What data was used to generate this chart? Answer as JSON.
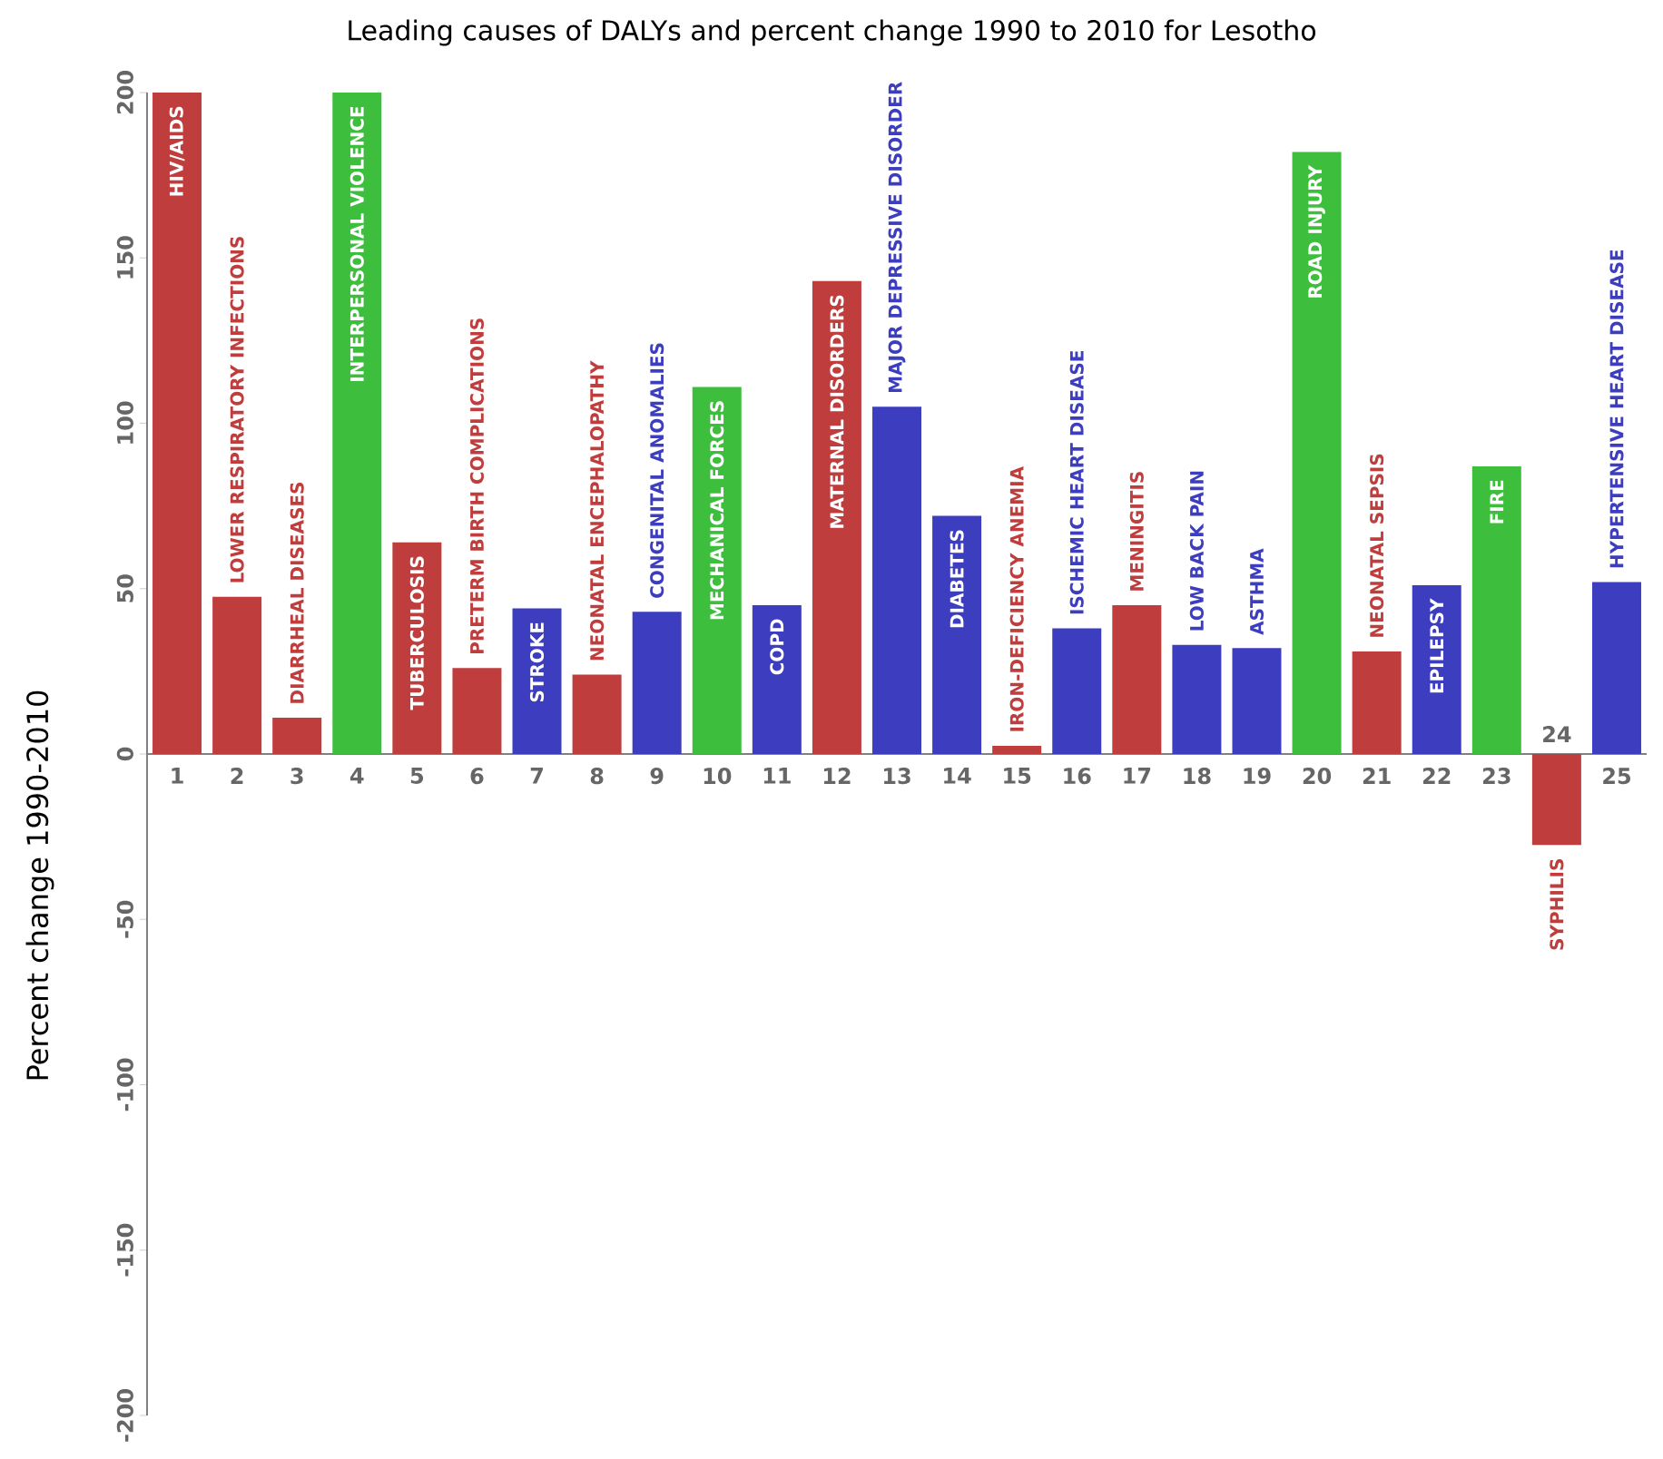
{
  "chart_data": {
    "type": "bar",
    "title": "Leading causes of DALYs and percent change 1990 to 2010 for Lesotho",
    "ylabel": "Percent change 1990-2010",
    "categories": [
      "1",
      "2",
      "3",
      "4",
      "5",
      "6",
      "7",
      "8",
      "9",
      "10",
      "11",
      "12",
      "13",
      "14",
      "15",
      "16",
      "17",
      "18",
      "19",
      "20",
      "21",
      "22",
      "23",
      "24",
      "25"
    ],
    "values": [
      200,
      47.5,
      11,
      200,
      64,
      26,
      44,
      24,
      43,
      111,
      45,
      143,
      105,
      72,
      2.5,
      38,
      45,
      33,
      32,
      182,
      31,
      51,
      87,
      -27.5,
      52
    ],
    "colors": [
      "#bf3d3d",
      "#bf3d3d",
      "#bf3d3d",
      "#3dbf3d",
      "#bf3d3d",
      "#bf3d3d",
      "#3d3dbf",
      "#bf3d3d",
      "#3d3dbf",
      "#3dbf3d",
      "#3d3dbf",
      "#bf3d3d",
      "#3d3dbf",
      "#3d3dbf",
      "#bf3d3d",
      "#3d3dbf",
      "#bf3d3d",
      "#3d3dbf",
      "#3d3dbf",
      "#3dbf3d",
      "#bf3d3d",
      "#3d3dbf",
      "#3dbf3d",
      "#bf3d3d",
      "#3d3dbf"
    ],
    "ylim": [
      -200,
      200
    ],
    "yticks": [
      -200,
      -150,
      -100,
      -50,
      0,
      50,
      100,
      150,
      200
    ],
    "annotations": [
      {
        "text": "HIV/AIDS",
        "x": "1",
        "y": 200
      },
      {
        "text": "LOWER RESPIRATORY INFECTIONS",
        "x": "2",
        "y": 47.5
      },
      {
        "text": "DIARRHEAL DISEASES",
        "x": "3",
        "y": 11
      },
      {
        "text": "INTERPERSONAL VIOLENCE",
        "x": "4",
        "y": 200
      },
      {
        "text": "TUBERCULOSIS",
        "x": "5",
        "y": 64
      },
      {
        "text": "PRETERM BIRTH COMPLICATIONS",
        "x": "6",
        "y": 26
      },
      {
        "text": "STROKE",
        "x": "7",
        "y": 44
      },
      {
        "text": "NEONATAL ENCEPHALOPATHY",
        "x": "8",
        "y": 24
      },
      {
        "text": "CONGENITAL ANOMALIES",
        "x": "9",
        "y": 43
      },
      {
        "text": "MECHANICAL FORCES",
        "x": "10",
        "y": 111
      },
      {
        "text": "COPD",
        "x": "11",
        "y": 45
      },
      {
        "text": "MATERNAL DISORDERS",
        "x": "12",
        "y": 143
      },
      {
        "text": "MAJOR DEPRESSIVE DISORDER",
        "x": "13",
        "y": 105
      },
      {
        "text": "DIABETES",
        "x": "14",
        "y": 72
      },
      {
        "text": "IRON-DEFICIENCY ANEMIA",
        "x": "15",
        "y": 2.5
      },
      {
        "text": "ISCHEMIC HEART DISEASE",
        "x": "16",
        "y": 38
      },
      {
        "text": "MENINGITIS",
        "x": "17",
        "y": 45
      },
      {
        "text": "LOW BACK PAIN",
        "x": "18",
        "y": 33
      },
      {
        "text": "ASTHMA",
        "x": "19",
        "y": 32
      },
      {
        "text": "ROAD INJURY",
        "x": "20",
        "y": 182
      },
      {
        "text": "NEONATAL SEPSIS",
        "x": "21",
        "y": 31
      },
      {
        "text": "EPILEPSY",
        "x": "22",
        "y": 51
      },
      {
        "text": "FIRE",
        "x": "23",
        "y": 87
      },
      {
        "text": "SYPHILIS",
        "x": "24",
        "y": -27.5
      },
      {
        "text": "HYPERTENSIVE HEART DISEASE",
        "x": "25",
        "y": 52
      }
    ]
  }
}
